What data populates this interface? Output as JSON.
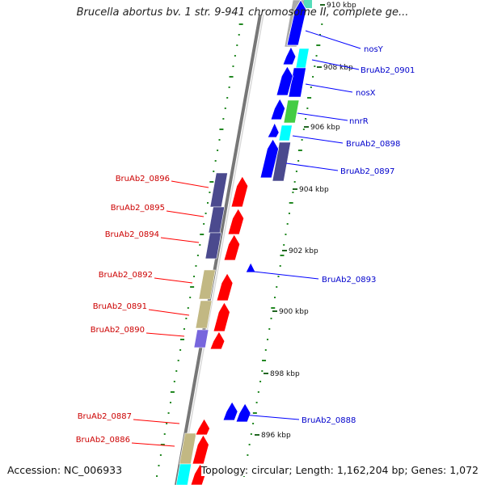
{
  "title": "Brucella abortus bv. 1 str. 9-941 chromosome II, complete ge...",
  "footer": {
    "accession": "Accession: NC_006933",
    "topology": "Topology: circular; Length: 1,162,204 bp; Genes: 1,072"
  },
  "colors": {
    "forward_gene": "#0000ff",
    "reverse_gene": "#ff0000",
    "cds_cog_purple": "#4b4a8e",
    "cds_cog_khaki": "#c2b883",
    "cds_cog_cyan": "#00ffff",
    "cds_cog_green": "#44cc44",
    "cds_cog_grey": "#aaaaaa",
    "cds_cog_teal": "#55ddbb",
    "cds_cog_violet": "#7766dd",
    "backbone": "#888888",
    "forward_label": "#0000cc",
    "reverse_label": "#cc0000",
    "gc_tick": "#228822"
  },
  "ticks": [
    {
      "label": "910 kbp",
      "kbp": 910
    },
    {
      "label": "908 kbp",
      "kbp": 908
    },
    {
      "label": "906 kbp",
      "kbp": 906
    },
    {
      "label": "904 kbp",
      "kbp": 904
    },
    {
      "label": "902 kbp",
      "kbp": 902
    },
    {
      "label": "900 kbp",
      "kbp": 900
    },
    {
      "label": "898 kbp",
      "kbp": 898
    },
    {
      "label": "896 kbp",
      "kbp": 896
    }
  ],
  "forward_genes": [
    {
      "label": "nosY"
    },
    {
      "label": "BruAb2_0901"
    },
    {
      "label": "nosX"
    },
    {
      "label": "nnrR"
    },
    {
      "label": "BruAb2_0898"
    },
    {
      "label": "BruAb2_0897"
    },
    {
      "label": "BruAb2_0893"
    },
    {
      "label": "BruAb2_0888"
    }
  ],
  "reverse_genes": [
    {
      "label": "BruAb2_0896"
    },
    {
      "label": "BruAb2_0895"
    },
    {
      "label": "BruAb2_0894"
    },
    {
      "label": "BruAb2_0892"
    },
    {
      "label": "BruAb2_0891"
    },
    {
      "label": "BruAb2_0890"
    },
    {
      "label": "BruAb2_0887"
    },
    {
      "label": "BruAb2_0886"
    }
  ]
}
